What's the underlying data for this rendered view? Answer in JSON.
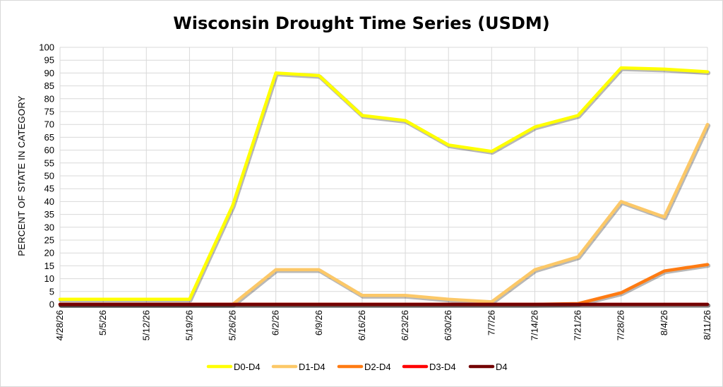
{
  "chart_data": {
    "type": "line",
    "title": "Wisconsin Drought Time Series (USDM)",
    "ylabel": "PERCENT OF STATE IN CATEGORY",
    "xlabel": "",
    "ylim": [
      0,
      100
    ],
    "ytick_step": 5,
    "categories": [
      "4/28/26",
      "5/5/26",
      "5/12/26",
      "5/19/26",
      "5/26/26",
      "6/2/26",
      "6/9/26",
      "6/16/26",
      "6/23/26",
      "6/30/26",
      "7/7/26",
      "7/14/26",
      "7/21/26",
      "7/28/26",
      "8/4/26",
      "8/11/26"
    ],
    "grid": true,
    "legend_position": "bottom",
    "series": [
      {
        "name": "D0-D4",
        "color": "#ffff00",
        "values": [
          2,
          2,
          2,
          2,
          38.5,
          90,
          89,
          73.5,
          71.5,
          62,
          59.5,
          69,
          73.5,
          92,
          91.5,
          90.5
        ]
      },
      {
        "name": "D1-D4",
        "color": "#fcc867",
        "values": [
          0,
          0,
          0,
          0,
          0,
          13.5,
          13.5,
          3.5,
          3.5,
          2,
          1,
          13.5,
          18.5,
          40,
          34,
          70
        ]
      },
      {
        "name": "D2-D4",
        "color": "#ff7b12",
        "values": [
          0,
          0,
          0,
          0,
          0,
          0,
          0,
          0,
          0,
          0,
          0,
          0,
          0.3,
          4.5,
          13,
          15.5
        ]
      },
      {
        "name": "D3-D4",
        "color": "#ff0000",
        "values": [
          0,
          0,
          0,
          0,
          0,
          0,
          0,
          0,
          0,
          0,
          0,
          0,
          0,
          0,
          0,
          0
        ]
      },
      {
        "name": "D4",
        "color": "#730000",
        "values": [
          0,
          0,
          0,
          0,
          0,
          0,
          0,
          0,
          0,
          0,
          0,
          0,
          0,
          0,
          0,
          0
        ]
      }
    ]
  }
}
